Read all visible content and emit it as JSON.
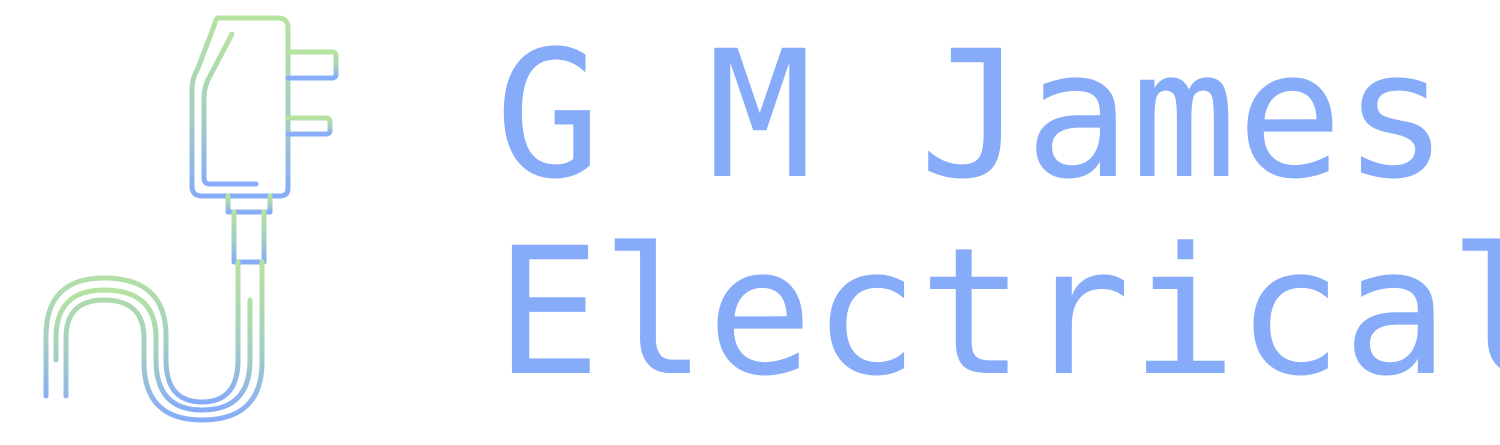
{
  "logo": {
    "icon": "plug-icon",
    "line1": "G M James",
    "line2": "Electrical",
    "colors": {
      "text": "#86acf9",
      "gradient_top": "#b6e3a0",
      "gradient_bottom": "#86acf9"
    }
  }
}
